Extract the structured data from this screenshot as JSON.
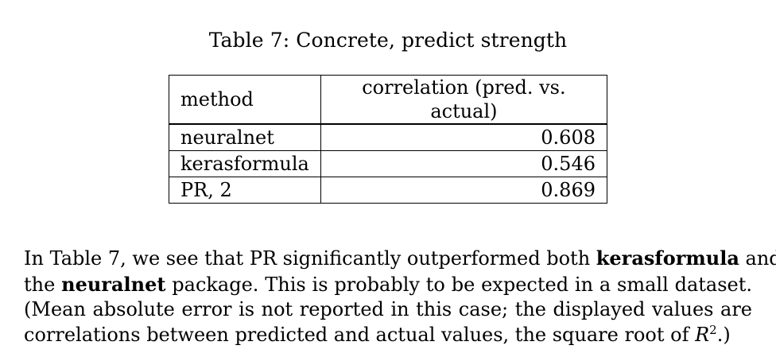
{
  "caption": "Table 7: Concrete, predict strength",
  "table": {
    "headers": [
      "method",
      "correlation (pred. vs. actual)"
    ],
    "rows": [
      {
        "method": "neuralnet",
        "value": "0.608"
      },
      {
        "method": "kerasformula",
        "value": "0.546"
      },
      {
        "method": "PR, 2",
        "value": "0.869"
      }
    ]
  },
  "paragraph": {
    "l1_a": "In Table 7, we see that PR significantly outperformed both ",
    "l1_b": "kerasformula",
    "l1_c": " and",
    "l2_a": "the ",
    "l2_b": "neuralnet",
    "l2_c": " package.  This is probably to be expected in a small dataset.",
    "l3": "(Mean absolute error is not reported in this case; the displayed values are",
    "l4_a": "correlations between predicted and actual values, the square root of ",
    "l4_r": "R",
    "l4_sup": "2",
    "l4_c": ".)"
  }
}
